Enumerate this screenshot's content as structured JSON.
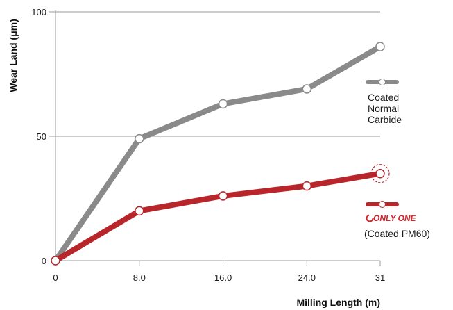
{
  "chart_data": {
    "type": "line",
    "xlabel": "Milling Length (m)",
    "ylabel": "Wear Land (μm)",
    "x_ticks": [
      "0",
      "8.0",
      "16.0",
      "24.0",
      "31"
    ],
    "y_ticks": [
      "0",
      "50",
      "100"
    ],
    "xlim": [
      0,
      31
    ],
    "ylim": [
      0,
      100
    ],
    "grid": "horizontal",
    "legend_placement": "right",
    "series": [
      {
        "name_lines": [
          "Coated",
          "Normal",
          "Carbide"
        ],
        "color": "#8a8a8a",
        "x": [
          0,
          8,
          16,
          24,
          31
        ],
        "y": [
          0,
          49,
          63,
          69,
          86
        ]
      },
      {
        "brand": "ONLY ONE",
        "name": "(Coated PM60)",
        "color": "#b8262c",
        "highlight_last": true,
        "x": [
          0,
          8,
          16,
          24,
          31
        ],
        "y": [
          0,
          20,
          26,
          30,
          35
        ]
      }
    ]
  }
}
